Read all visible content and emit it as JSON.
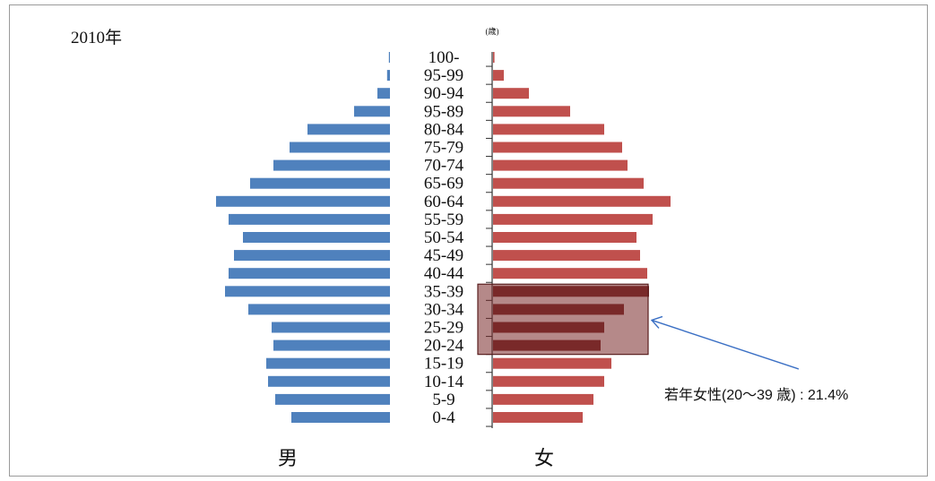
{
  "chart_data": {
    "type": "bar",
    "title": "2010年",
    "unit": "(歳)",
    "categories": [
      "100-",
      "95-99",
      "90-94",
      "95-89",
      "80-84",
      "75-79",
      "70-74",
      "65-69",
      "60-64",
      "55-59",
      "50-54",
      "45-49",
      "40-44",
      "35-39",
      "30-34",
      "25-29",
      "20-24",
      "15-19",
      "10-14",
      "5-9",
      "0-4"
    ],
    "series": [
      {
        "name": "男",
        "color": "#4f81bd",
        "values": [
          0.03,
          0.08,
          0.35,
          1.0,
          2.3,
          2.8,
          3.25,
          3.9,
          4.85,
          4.5,
          4.1,
          4.35,
          4.5,
          4.6,
          3.95,
          3.3,
          3.25,
          3.45,
          3.4,
          3.2,
          2.75
        ]
      },
      {
        "name": "女",
        "color": "#c0504d",
        "values": [
          0.04,
          0.3,
          1.0,
          2.15,
          3.1,
          3.6,
          3.75,
          4.2,
          4.95,
          4.45,
          4.0,
          4.1,
          4.3,
          4.35,
          3.65,
          3.1,
          3.0,
          3.3,
          3.1,
          2.8,
          2.5
        ]
      }
    ],
    "highlight": {
      "categories": [
        "35-39",
        "30-34",
        "25-29",
        "20-24"
      ],
      "label": "若年女性(20～39 歳) : 21.4%",
      "color": "#7b2a2a"
    },
    "grid": false
  }
}
